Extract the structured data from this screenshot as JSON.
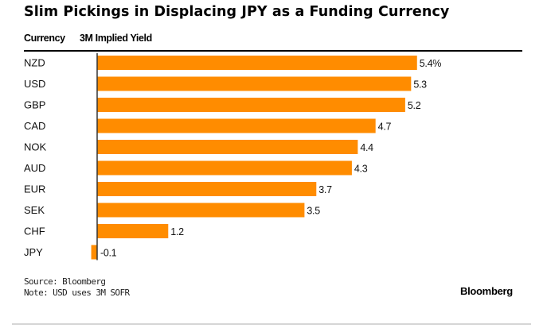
{
  "chart_data": {
    "type": "bar",
    "orientation": "horizontal",
    "title": "Slim Pickings in Displacing JPY as a Funding Currency",
    "column_headers": {
      "category": "Currency",
      "value": "3M Implied Yield"
    },
    "categories": [
      "NZD",
      "USD",
      "GBP",
      "CAD",
      "NOK",
      "AUD",
      "EUR",
      "SEK",
      "CHF",
      "JPY"
    ],
    "values": [
      5.4,
      5.3,
      5.2,
      4.7,
      4.4,
      4.3,
      3.7,
      3.5,
      1.2,
      -0.1
    ],
    "value_labels": [
      "5.4%",
      "5.3",
      "5.2",
      "4.7",
      "4.4",
      "4.3",
      "3.7",
      "3.5",
      "1.2",
      "-0.1"
    ],
    "unit": "%",
    "xlim": [
      -0.1,
      5.4
    ],
    "grid": false,
    "bar_color": "#ff8c00",
    "axis_color": "#333333",
    "source": "Source: Bloomberg",
    "note": "Note: USD uses 3M SOFR",
    "brand": "Bloomberg"
  }
}
